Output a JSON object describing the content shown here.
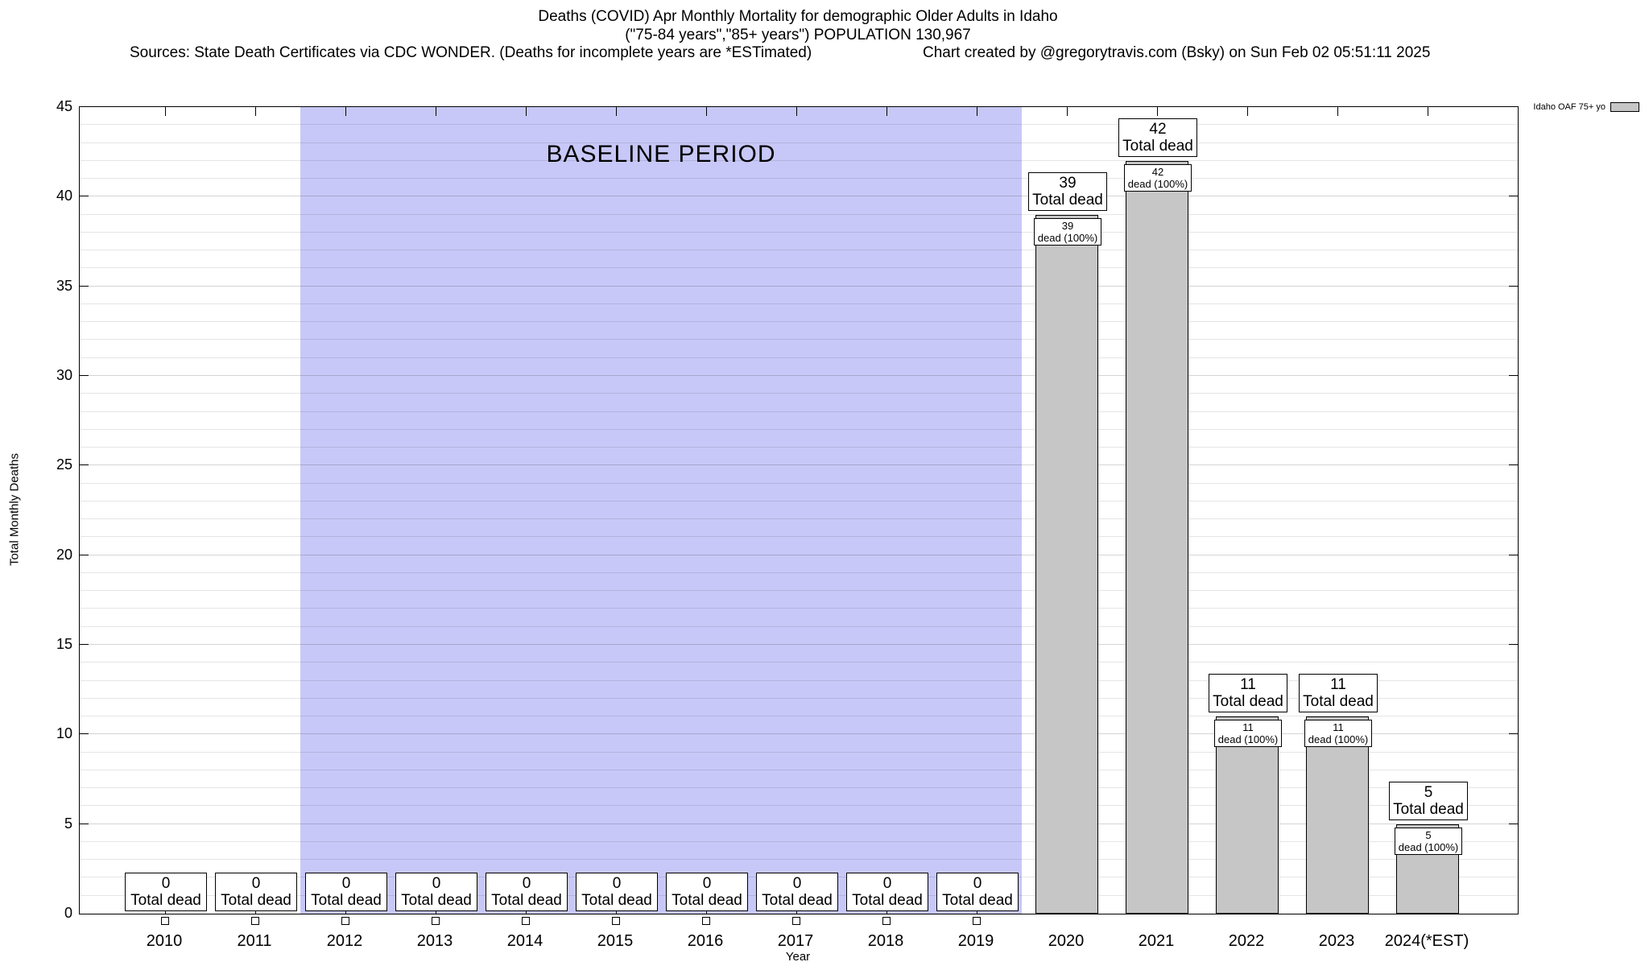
{
  "header": {
    "title_line1": "Deaths (COVID) Apr Monthly Mortality for demographic Older Adults in Idaho",
    "title_line2": "(\"75-84 years\",\"85+ years\") POPULATION 130,967",
    "sources": "Sources: State Death Certificates via CDC WONDER. (Deaths for incomplete years are *ESTimated)",
    "credit": "Chart created by @gregorytravis.com (Bsky) on Sun Feb 02 05:51:11 2025"
  },
  "chart_data": {
    "type": "bar",
    "title": "Deaths (COVID) Apr Monthly Mortality for demographic Older Adults in Idaho",
    "subtitle": "(\"75-84 years\",\"85+ years\") POPULATION 130,967",
    "categories": [
      "2010",
      "2011",
      "2012",
      "2013",
      "2014",
      "2015",
      "2016",
      "2017",
      "2018",
      "2019",
      "2020",
      "2021",
      "2022",
      "2023",
      "2024(*EST)"
    ],
    "values": [
      0,
      0,
      0,
      0,
      0,
      0,
      0,
      0,
      0,
      0,
      39,
      42,
      11,
      11,
      5
    ],
    "total_dead_label": "Total dead",
    "dead_pct_label": "dead (100%)",
    "ylabel": "Total Monthly Deaths",
    "xlabel": "Year",
    "ylim": [
      0,
      45
    ],
    "yticks": [
      0,
      5,
      10,
      15,
      20,
      25,
      30,
      35,
      40,
      45
    ],
    "ytick_step": 5,
    "grid": "horizontal, minor every 1 and major every 5, on",
    "legend_position": "top-right",
    "baseline": {
      "label": "BASELINE PERIOD",
      "from": "2012",
      "to": "2019"
    },
    "legend": {
      "label": "Idaho OAF 75+ yo"
    },
    "colors": {
      "bar": "#c6c6c6",
      "baseline_region": "#c8c8f8",
      "box_bg": "#ffffff",
      "text": "#000000"
    }
  }
}
